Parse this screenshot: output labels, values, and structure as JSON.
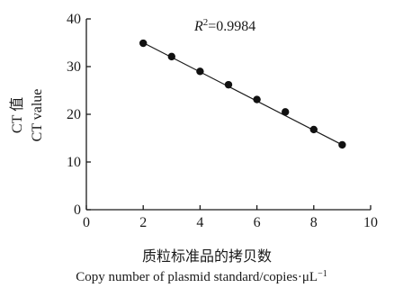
{
  "chart_data": {
    "type": "scatter",
    "title": "",
    "annotation": {
      "prefix": "R",
      "superscript": "2",
      "value": "=0.9984"
    },
    "xlabel_cn": "质粒标准品的拷贝数",
    "xlabel_en": "Copy number of plasmid standard/copies·μL",
    "xlabel_en_superscript": "−1",
    "ylabel_cn": "CT 值",
    "ylabel_en": "CT  value",
    "xlim": [
      0,
      10
    ],
    "ylim": [
      0,
      40
    ],
    "xticks": [
      0,
      2,
      4,
      6,
      8,
      10
    ],
    "yticks": [
      0,
      10,
      20,
      30,
      40
    ],
    "x": [
      2,
      3,
      4,
      5,
      6,
      7,
      8,
      9
    ],
    "y": [
      34.9,
      32.1,
      29.0,
      26.2,
      23.1,
      20.5,
      16.8,
      13.6
    ],
    "fit_line": {
      "x": [
        2,
        9
      ],
      "y": [
        35.0,
        13.6
      ]
    },
    "grid": false,
    "marker_color": "#111111"
  }
}
